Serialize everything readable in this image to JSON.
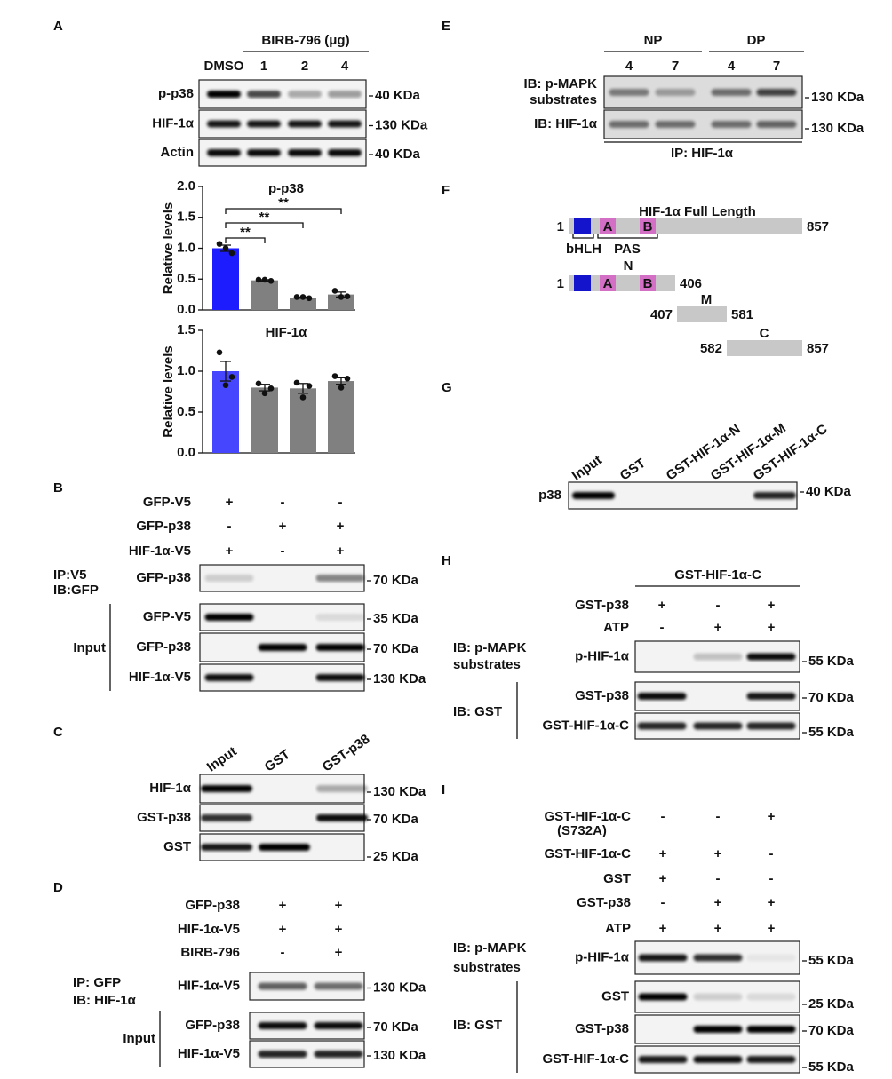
{
  "panel_a": {
    "letter": "A",
    "treatment": "BIRB-796 (μg)",
    "lanes": [
      "DMSO",
      "1",
      "2",
      "4"
    ],
    "blots": [
      {
        "label": "p-p38",
        "marker": "40 KDa"
      },
      {
        "label": "HIF-1α",
        "marker": "130 KDa"
      },
      {
        "label": "Actin",
        "marker": "40 KDa"
      }
    ]
  },
  "chart_data": [
    {
      "type": "bar",
      "title": "p-p38",
      "ylabel": "Relative levels",
      "ylim": [
        0,
        2
      ],
      "yticks": [
        {
          "value": 0,
          "label": "0.0"
        },
        0.5,
        {
          "value": 1,
          "label": "1.0"
        },
        1.5,
        {
          "value": 2,
          "label": "2.0"
        }
      ],
      "values": [
        1.0,
        0.48,
        0.2,
        0.25
      ],
      "errors": [
        0.05,
        0.01,
        0.01,
        0.04
      ],
      "points": [
        [
          1.07,
          0.92,
          1.0
        ],
        [
          0.49,
          0.47,
          0.49
        ],
        [
          0.21,
          0.19,
          0.21
        ],
        [
          0.31,
          0.22,
          0.21
        ]
      ],
      "colors": [
        "#1c1cff",
        "#808080",
        "#808080",
        "#808080"
      ],
      "significance": [
        {
          "label": "**",
          "bars": [
            0,
            1
          ]
        },
        {
          "label": "**",
          "bars": [
            0,
            2
          ]
        },
        {
          "label": "**",
          "bars": [
            0,
            3
          ]
        }
      ]
    },
    {
      "type": "bar",
      "title": "HIF-1α",
      "ylabel": "Relative levels",
      "ylim": [
        0,
        1.5
      ],
      "yticks": [
        {
          "value": 0,
          "label": "0.0"
        },
        0.5,
        {
          "value": 1,
          "label": "1.0"
        },
        1.5
      ],
      "values": [
        1.0,
        0.8,
        0.79,
        0.88
      ],
      "errors": [
        0.12,
        0.04,
        0.06,
        0.04
      ],
      "points": [
        [
          1.23,
          0.93,
          0.83
        ],
        [
          0.85,
          0.79,
          0.73
        ],
        [
          0.86,
          0.82,
          0.68
        ],
        [
          0.94,
          0.91,
          0.8
        ]
      ],
      "colors": [
        "#4646ff",
        "#808080",
        "#808080",
        "#808080"
      ]
    }
  ],
  "panel_b": {
    "letter": "B",
    "conditions": [
      {
        "label": "GFP-V5",
        "marks": [
          "+",
          "-",
          "-"
        ]
      },
      {
        "label": "GFP-p38",
        "marks": [
          "-",
          "+",
          "+"
        ]
      },
      {
        "label": "HIF-1α-V5",
        "marks": [
          "+",
          "-",
          "+"
        ]
      }
    ],
    "ip_label": "IP:V5",
    "ib_label": "IB:GFP",
    "blots": [
      {
        "label": "GFP-p38",
        "marker": "70 KDa"
      }
    ],
    "input_label": "Input",
    "input_blots": [
      {
        "label": "GFP-V5",
        "marker": "35 KDa"
      },
      {
        "label": "GFP-p38",
        "marker": "70 KDa"
      },
      {
        "label": "HIF-1α-V5",
        "marker": "130 KDa"
      }
    ]
  },
  "panel_c": {
    "letter": "C",
    "lanes": [
      "Input",
      "GST",
      "GST-p38"
    ],
    "blots": [
      {
        "label": "HIF-1α",
        "marker": "130 KDa"
      },
      {
        "label": "GST-p38",
        "marker": "70 KDa"
      },
      {
        "label": "GST",
        "marker": "25 KDa"
      }
    ]
  },
  "panel_d": {
    "letter": "D",
    "conditions": [
      {
        "label": "GFP-p38",
        "marks": [
          "+",
          "+"
        ]
      },
      {
        "label": "HIF-1α-V5",
        "marks": [
          "+",
          "+"
        ]
      },
      {
        "label": "BIRB-796",
        "marks": [
          "-",
          "+"
        ]
      }
    ],
    "ip_label": "IP: GFP",
    "ib_label": "IB: HIF-1α",
    "blots": [
      {
        "label": "HIF-1α-V5",
        "marker": "130 KDa"
      }
    ],
    "input_label": "Input",
    "input_blots": [
      {
        "label": "GFP-p38",
        "marker": "70 KDa"
      },
      {
        "label": "HIF-1α-V5",
        "marker": "130 KDa"
      }
    ]
  },
  "panel_e": {
    "letter": "E",
    "groups": [
      {
        "name": "NP",
        "lanes": [
          "4",
          "7"
        ]
      },
      {
        "name": "DP",
        "lanes": [
          "4",
          "7"
        ]
      }
    ],
    "blots": [
      {
        "label": [
          "IB: p-MAPK",
          "substrates"
        ],
        "marker": "130 KDa"
      },
      {
        "label": [
          "IB: HIF-1α"
        ],
        "marker": "130 KDa"
      }
    ],
    "ip_label": "IP: HIF-1α"
  },
  "panel_f": {
    "letter": "F",
    "title": "HIF-1α Full Length",
    "full": {
      "start": "1",
      "end": "857",
      "domains": [
        "A",
        "B"
      ]
    },
    "domain_names": [
      "bHLH",
      "PAS"
    ],
    "fragments": [
      {
        "name": "N",
        "start": "1",
        "end": "406",
        "domains": [
          "A",
          "B"
        ]
      },
      {
        "name": "M",
        "start": "407",
        "end": "581"
      },
      {
        "name": "C",
        "start": "582",
        "end": "857"
      }
    ]
  },
  "panel_g": {
    "letter": "G",
    "lanes": [
      "Input",
      "GST",
      "GST-HIF-1α-N",
      "GST-HIF-1α-M",
      "GST-HIF-1α-C"
    ],
    "blots": [
      {
        "label": "p38",
        "marker": "40 KDa"
      }
    ]
  },
  "panel_h": {
    "letter": "H",
    "header": "GST-HIF-1α-C",
    "conditions": [
      {
        "label": "GST-p38",
        "marks": [
          "+",
          "-",
          "+"
        ]
      },
      {
        "label": "ATP",
        "marks": [
          "-",
          "+",
          "+"
        ]
      }
    ],
    "ib1_label": [
      "IB: p-MAPK",
      "substrates"
    ],
    "blots": [
      {
        "label": "p-HIF-1α",
        "marker": "55 KDa"
      }
    ],
    "ib2_label": "IB: GST",
    "gst_blots": [
      {
        "label": "GST-p38",
        "marker": "70 KDa"
      },
      {
        "label": "GST-HIF-1α-C",
        "marker": "55 KDa"
      }
    ]
  },
  "panel_i": {
    "letter": "I",
    "conditions": [
      {
        "label": "GST-HIF-1α-C",
        "sub": "(S732A)",
        "marks": [
          "-",
          "-",
          "+"
        ]
      },
      {
        "label": "GST-HIF-1α-C",
        "marks": [
          "+",
          "+",
          "-"
        ]
      },
      {
        "label": "GST",
        "marks": [
          "+",
          "-",
          "-"
        ]
      },
      {
        "label": "GST-p38",
        "marks": [
          "-",
          "+",
          "+"
        ]
      },
      {
        "label": "ATP",
        "marks": [
          "+",
          "+",
          "+"
        ]
      }
    ],
    "ib1_label": [
      "IB: p-MAPK",
      "substrates"
    ],
    "blots": [
      {
        "label": "p-HIF-1α",
        "marker": "55 KDa"
      }
    ],
    "ib2_label": "IB: GST",
    "gst_blots": [
      {
        "label": "GST",
        "marker": "25 KDa"
      },
      {
        "label": "GST-p38",
        "marker": "70 KDa"
      },
      {
        "label": "GST-HIF-1α-C",
        "marker": "55 KDa"
      }
    ]
  }
}
